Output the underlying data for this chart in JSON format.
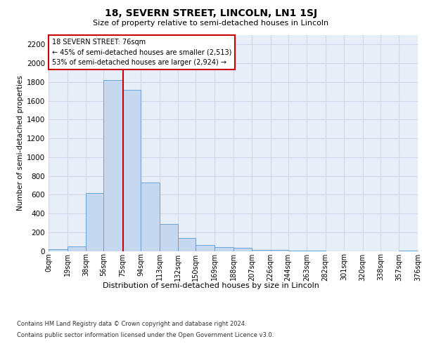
{
  "title": "18, SEVERN STREET, LINCOLN, LN1 1SJ",
  "subtitle": "Size of property relative to semi-detached houses in Lincoln",
  "xlabel": "Distribution of semi-detached houses by size in Lincoln",
  "ylabel": "Number of semi-detached properties",
  "footer_line1": "Contains HM Land Registry data © Crown copyright and database right 2024.",
  "footer_line2": "Contains public sector information licensed under the Open Government Licence v3.0.",
  "annotation_line1": "18 SEVERN STREET: 76sqm",
  "annotation_line2": "← 45% of semi-detached houses are smaller (2,513)",
  "annotation_line3": "53% of semi-detached houses are larger (2,924) →",
  "bar_edges": [
    0,
    19,
    38,
    56,
    75,
    94,
    113,
    132,
    150,
    169,
    188,
    207,
    226,
    244,
    263,
    282,
    301,
    320,
    338,
    357,
    376
  ],
  "bar_heights": [
    20,
    50,
    620,
    1820,
    1720,
    730,
    290,
    140,
    60,
    40,
    30,
    10,
    10,
    5,
    5,
    0,
    0,
    0,
    0,
    5
  ],
  "bar_color": "#c5d8f0",
  "bar_edge_color": "#5b9bd5",
  "grid_color": "#d0d8e8",
  "background_color": "#e8eef8",
  "vline_color": "#cc0000",
  "vline_x": 76,
  "ylim": [
    0,
    2300
  ],
  "yticks": [
    0,
    200,
    400,
    600,
    800,
    1000,
    1200,
    1400,
    1600,
    1800,
    2000,
    2200
  ],
  "tick_labels": [
    "0sqm",
    "19sqm",
    "38sqm",
    "56sqm",
    "75sqm",
    "94sqm",
    "113sqm",
    "132sqm",
    "150sqm",
    "169sqm",
    "188sqm",
    "207sqm",
    "226sqm",
    "244sqm",
    "263sqm",
    "282sqm",
    "301sqm",
    "320sqm",
    "338sqm",
    "357sqm",
    "376sqm"
  ]
}
